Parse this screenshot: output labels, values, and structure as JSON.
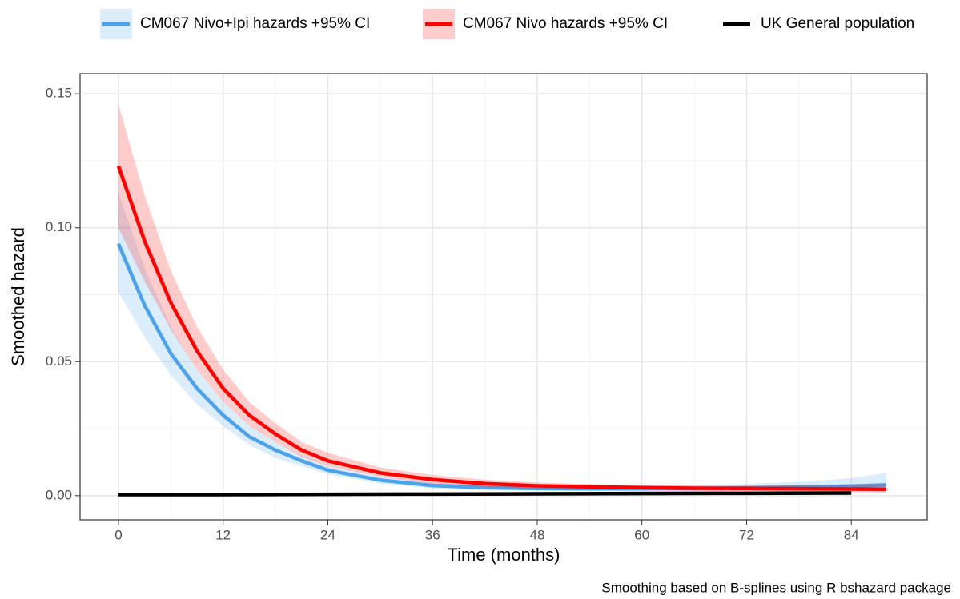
{
  "chart_data": {
    "type": "line",
    "x_label": "Time (months)",
    "y_label": "Smoothed hazard",
    "caption": "Smoothing based on B-splines using R bshazard package",
    "xlim": [
      -4.4,
      92.7
    ],
    "ylim": [
      -0.009,
      0.1575
    ],
    "xticks": [
      0,
      12,
      24,
      36,
      48,
      60,
      72,
      84
    ],
    "yticks": [
      {
        "value": 0,
        "label": "0.00"
      },
      {
        "value": 0.05,
        "label": "0.05"
      },
      {
        "value": 0.1,
        "label": "0.10"
      },
      {
        "value": 0.15,
        "label": "0.15"
      }
    ],
    "grid": true,
    "legend": "top",
    "series": [
      {
        "name": "CM067 Nivo+Ipi hazards +95% CI",
        "color": "#4da3eb",
        "x": [
          0,
          3,
          6,
          9,
          12,
          15,
          18,
          21,
          24,
          30,
          36,
          42,
          48,
          54,
          60,
          66,
          72,
          78,
          84,
          88
        ],
        "values": [
          0.094,
          0.071,
          0.053,
          0.04,
          0.03,
          0.022,
          0.017,
          0.013,
          0.0095,
          0.0058,
          0.0038,
          0.003,
          0.0027,
          0.0026,
          0.0026,
          0.0027,
          0.0029,
          0.0032,
          0.0036,
          0.004
        ],
        "lower": [
          0.076,
          0.059,
          0.045,
          0.034,
          0.026,
          0.019,
          0.014,
          0.011,
          0.008,
          0.0045,
          0.0028,
          0.002,
          0.0018,
          0.0017,
          0.0016,
          0.0016,
          0.0016,
          0.0016,
          0.0015,
          0.0012
        ],
        "upper": [
          0.113,
          0.085,
          0.063,
          0.047,
          0.035,
          0.026,
          0.02,
          0.015,
          0.011,
          0.007,
          0.0048,
          0.004,
          0.0037,
          0.0036,
          0.0037,
          0.0039,
          0.0044,
          0.0052,
          0.0065,
          0.0085
        ]
      },
      {
        "name": "CM067 Nivo hazards +95% CI",
        "color": "#ff0000",
        "x": [
          0,
          3,
          6,
          9,
          12,
          15,
          18,
          21,
          24,
          30,
          36,
          42,
          48,
          54,
          60,
          66,
          72,
          78,
          84,
          88
        ],
        "values": [
          0.123,
          0.095,
          0.072,
          0.054,
          0.04,
          0.03,
          0.023,
          0.017,
          0.013,
          0.0085,
          0.006,
          0.0045,
          0.0037,
          0.0033,
          0.003,
          0.0028,
          0.0027,
          0.0026,
          0.0025,
          0.0024
        ],
        "lower": [
          0.1,
          0.08,
          0.062,
          0.047,
          0.035,
          0.026,
          0.02,
          0.0145,
          0.011,
          0.007,
          0.0045,
          0.0033,
          0.0027,
          0.0024,
          0.0022,
          0.0019,
          0.0017,
          0.0015,
          0.0013,
          0.0012
        ],
        "upper": [
          0.146,
          0.112,
          0.084,
          0.063,
          0.047,
          0.035,
          0.027,
          0.02,
          0.016,
          0.0105,
          0.0077,
          0.006,
          0.0049,
          0.0043,
          0.004,
          0.0038,
          0.0038,
          0.0039,
          0.004,
          0.0043
        ]
      },
      {
        "name": "UK General population",
        "color": "#000000",
        "x": [
          0,
          12,
          24,
          36,
          48,
          60,
          72,
          84
        ],
        "values": [
          0.0004,
          0.0004,
          0.0005,
          0.0006,
          0.0007,
          0.0008,
          0.0009,
          0.001
        ]
      }
    ]
  }
}
